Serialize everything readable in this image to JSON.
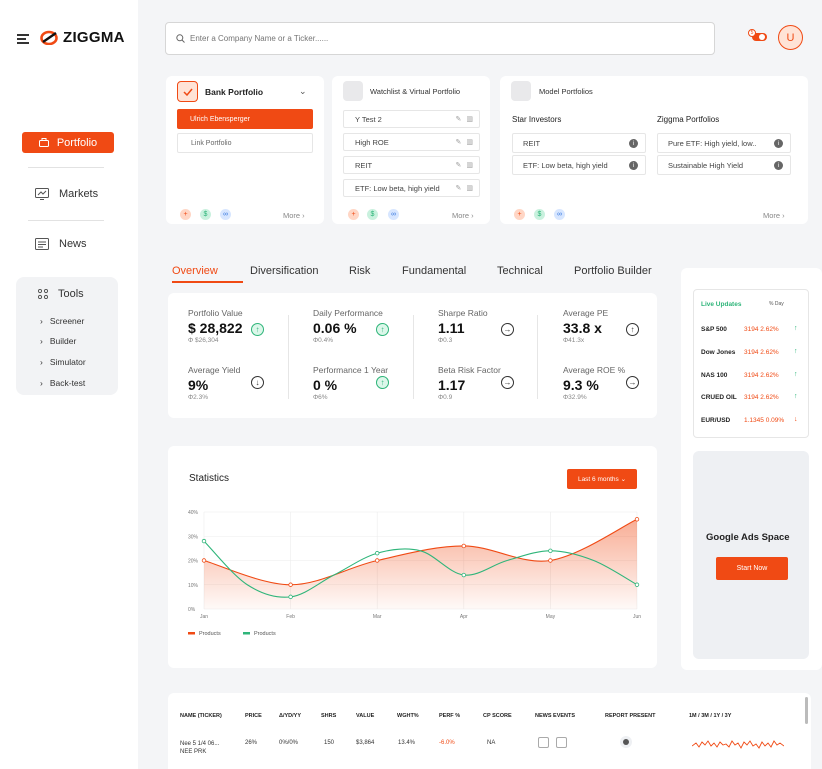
{
  "brand": {
    "name": "ZIGGMA",
    "accent": "#f04a14",
    "green": "#2fb57a"
  },
  "sidebar": {
    "items": [
      {
        "label": "Portfolio",
        "icon": "briefcase-icon",
        "active": true
      },
      {
        "label": "Markets",
        "icon": "monitor-icon"
      },
      {
        "label": "News",
        "icon": "newspaper-icon"
      }
    ],
    "tools": {
      "label": "Tools",
      "icon": "grid-icon",
      "items": [
        "Screener",
        "Builder",
        "Simulator",
        "Back-test"
      ]
    }
  },
  "header": {
    "search_placeholder": "Enter a Company Name or a Ticker......",
    "notification_count": "5",
    "avatar_initial": "U"
  },
  "portfolio_cards": {
    "bank": {
      "title": "Bank Portfolio",
      "items": [
        "Ulrich Ebensperger",
        "Link Portfolio"
      ],
      "more": "More"
    },
    "watchlist": {
      "title": "Watchlist & Virtual Portfolio",
      "items": [
        "Y Test 2",
        "High ROE",
        "REIT",
        "ETF: Low beta, high yield"
      ],
      "more": "More"
    },
    "model": {
      "title": "Model Portfolios",
      "star_title": "Star Investors",
      "star_items": [
        "REIT",
        "ETF: Low beta, high yield"
      ],
      "ziggma_title": "Ziggma Portfolios",
      "ziggma_items": [
        "Pure ETF: High yield, low..",
        "Sustainable High Yield"
      ],
      "more": "More"
    }
  },
  "tabs": [
    "Overview",
    "Diversification",
    "Risk",
    "Fundamental",
    "Technical",
    "Portfolio Builder"
  ],
  "overview": {
    "metrics": [
      {
        "label": "Portfolio Value",
        "value": "$ 28,822",
        "sub": "Φ $26,304",
        "arrow": "up"
      },
      {
        "label": "Average Yield",
        "value": "9%",
        "sub": "Φ2.3%",
        "arrow": "down"
      },
      {
        "label": "Daily Performance",
        "value": "0.06 %",
        "sub": "Φ0.4%",
        "arrow": "up"
      },
      {
        "label": "Performance 1 Year",
        "value": "0 %",
        "sub": "Φ6%",
        "arrow": "up"
      },
      {
        "label": "Sharpe Ratio",
        "value": "1.11",
        "sub": "Φ0.3",
        "arrow": "right"
      },
      {
        "label": "Beta Risk Factor",
        "value": "1.17",
        "sub": "Φ0.9",
        "arrow": "right"
      },
      {
        "label": "Average PE",
        "value": "33.8 x",
        "sub": "Φ41.3x",
        "arrow": "upright"
      },
      {
        "label": "Average ROE %",
        "value": "9.3 %",
        "sub": "Φ32.9%",
        "arrow": "right"
      }
    ]
  },
  "live_updates": {
    "title": "Live Updates",
    "toggle_label": "% Day",
    "rows": [
      {
        "name": "S&P 500",
        "price": "3194",
        "change": "2.62%",
        "dir": "up"
      },
      {
        "name": "Dow Jones",
        "price": "3194",
        "change": "2.62%",
        "dir": "up"
      },
      {
        "name": "NAS 100",
        "price": "3194",
        "change": "2.62%",
        "dir": "up"
      },
      {
        "name": "CRUED OIL",
        "price": "3194",
        "change": "2.62%",
        "dir": "up"
      },
      {
        "name": "EUR/USD",
        "price": "1.1345",
        "change": "0.09%",
        "dir": "down"
      }
    ]
  },
  "ads": {
    "title": "Google Ads Space",
    "button": "Start Now"
  },
  "statistics": {
    "title": "Statistics",
    "range_button": "Last 6 months"
  },
  "chart_data": {
    "type": "area",
    "x": [
      "Jan",
      "Feb",
      "Mar",
      "Apr",
      "May",
      "Jun"
    ],
    "ylim": [
      0,
      40
    ],
    "y_ticks": [
      "0%",
      "10%",
      "20%",
      "30%",
      "40%"
    ],
    "grid": true,
    "legend": "bottom-left",
    "series": [
      {
        "name": "Products",
        "color": "#f04a14",
        "x": [
          "Jan",
          "Feb",
          "Mar",
          "Apr",
          "May",
          "Jun"
        ],
        "values": [
          20,
          10,
          20,
          26,
          20,
          37
        ]
      },
      {
        "name": "Products",
        "color": "#2fb57a",
        "x": [
          "Jan",
          "Jan-Feb",
          "Feb",
          "Feb-Mar",
          "Mar",
          "Mar-Apr",
          "Apr",
          "Apr-May",
          "May",
          "May-Jun",
          "Jun"
        ],
        "values": [
          28,
          10,
          5,
          14,
          23,
          24,
          14,
          20,
          24,
          20,
          10
        ]
      }
    ]
  },
  "holdings_table": {
    "columns": [
      "NAME (TICKER)",
      "PRICE",
      "Δ/YD/YY",
      "SHRS",
      "VALUE",
      "WGHT%",
      "PERF %",
      "CP SCORE",
      "NEWS EVENTS",
      "REPORT PRESENT",
      "1M / 3M / 1Y / 3Y"
    ],
    "rows": [
      {
        "name": "Nee 5 1/4 06...",
        "ticker": "NEE PRK",
        "price": "26%",
        "delta": "0%/0%",
        "shares": "150",
        "value": "$3,864",
        "weight": "13.4%",
        "perf": "-6.0%",
        "score": "NA"
      }
    ]
  }
}
